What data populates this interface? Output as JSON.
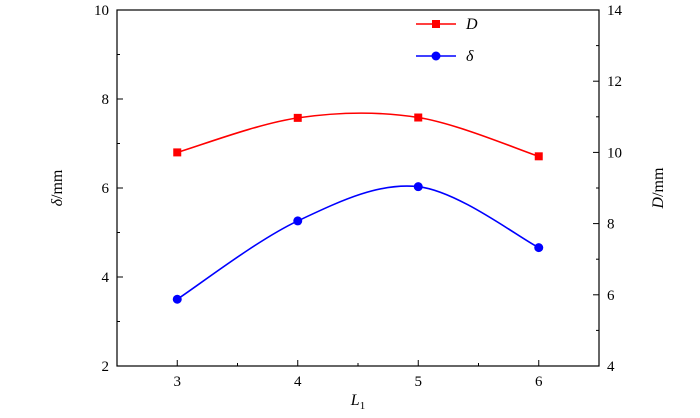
{
  "chart_data": {
    "type": "line",
    "x": [
      3,
      4,
      5,
      6
    ],
    "xlim": [
      2.5,
      6.5
    ],
    "xticks": [
      "3",
      "4",
      "5",
      "6"
    ],
    "xlabel": {
      "main": "L",
      "sub": "1"
    },
    "left_axis": {
      "label": {
        "symbol": "δ",
        "unit": "/mm"
      },
      "ylim": [
        2,
        10
      ],
      "ticks": [
        "2",
        "4",
        "6",
        "8",
        "10"
      ]
    },
    "right_axis": {
      "label": {
        "symbol": "D",
        "unit": "/mm"
      },
      "ylim": [
        4,
        14
      ],
      "ticks": [
        "4",
        "6",
        "8",
        "10",
        "12",
        "14"
      ]
    },
    "series": [
      {
        "name": "D",
        "axis": "right",
        "marker": "square",
        "color": "#ff0000",
        "values": [
          10.0,
          10.97,
          10.98,
          9.89
        ]
      },
      {
        "name": "δ",
        "axis": "left",
        "marker": "circle",
        "color": "#0000ff",
        "values": [
          3.5,
          5.26,
          6.03,
          4.66
        ]
      }
    ],
    "legend": {
      "placement": "top-right"
    },
    "grid": false
  }
}
